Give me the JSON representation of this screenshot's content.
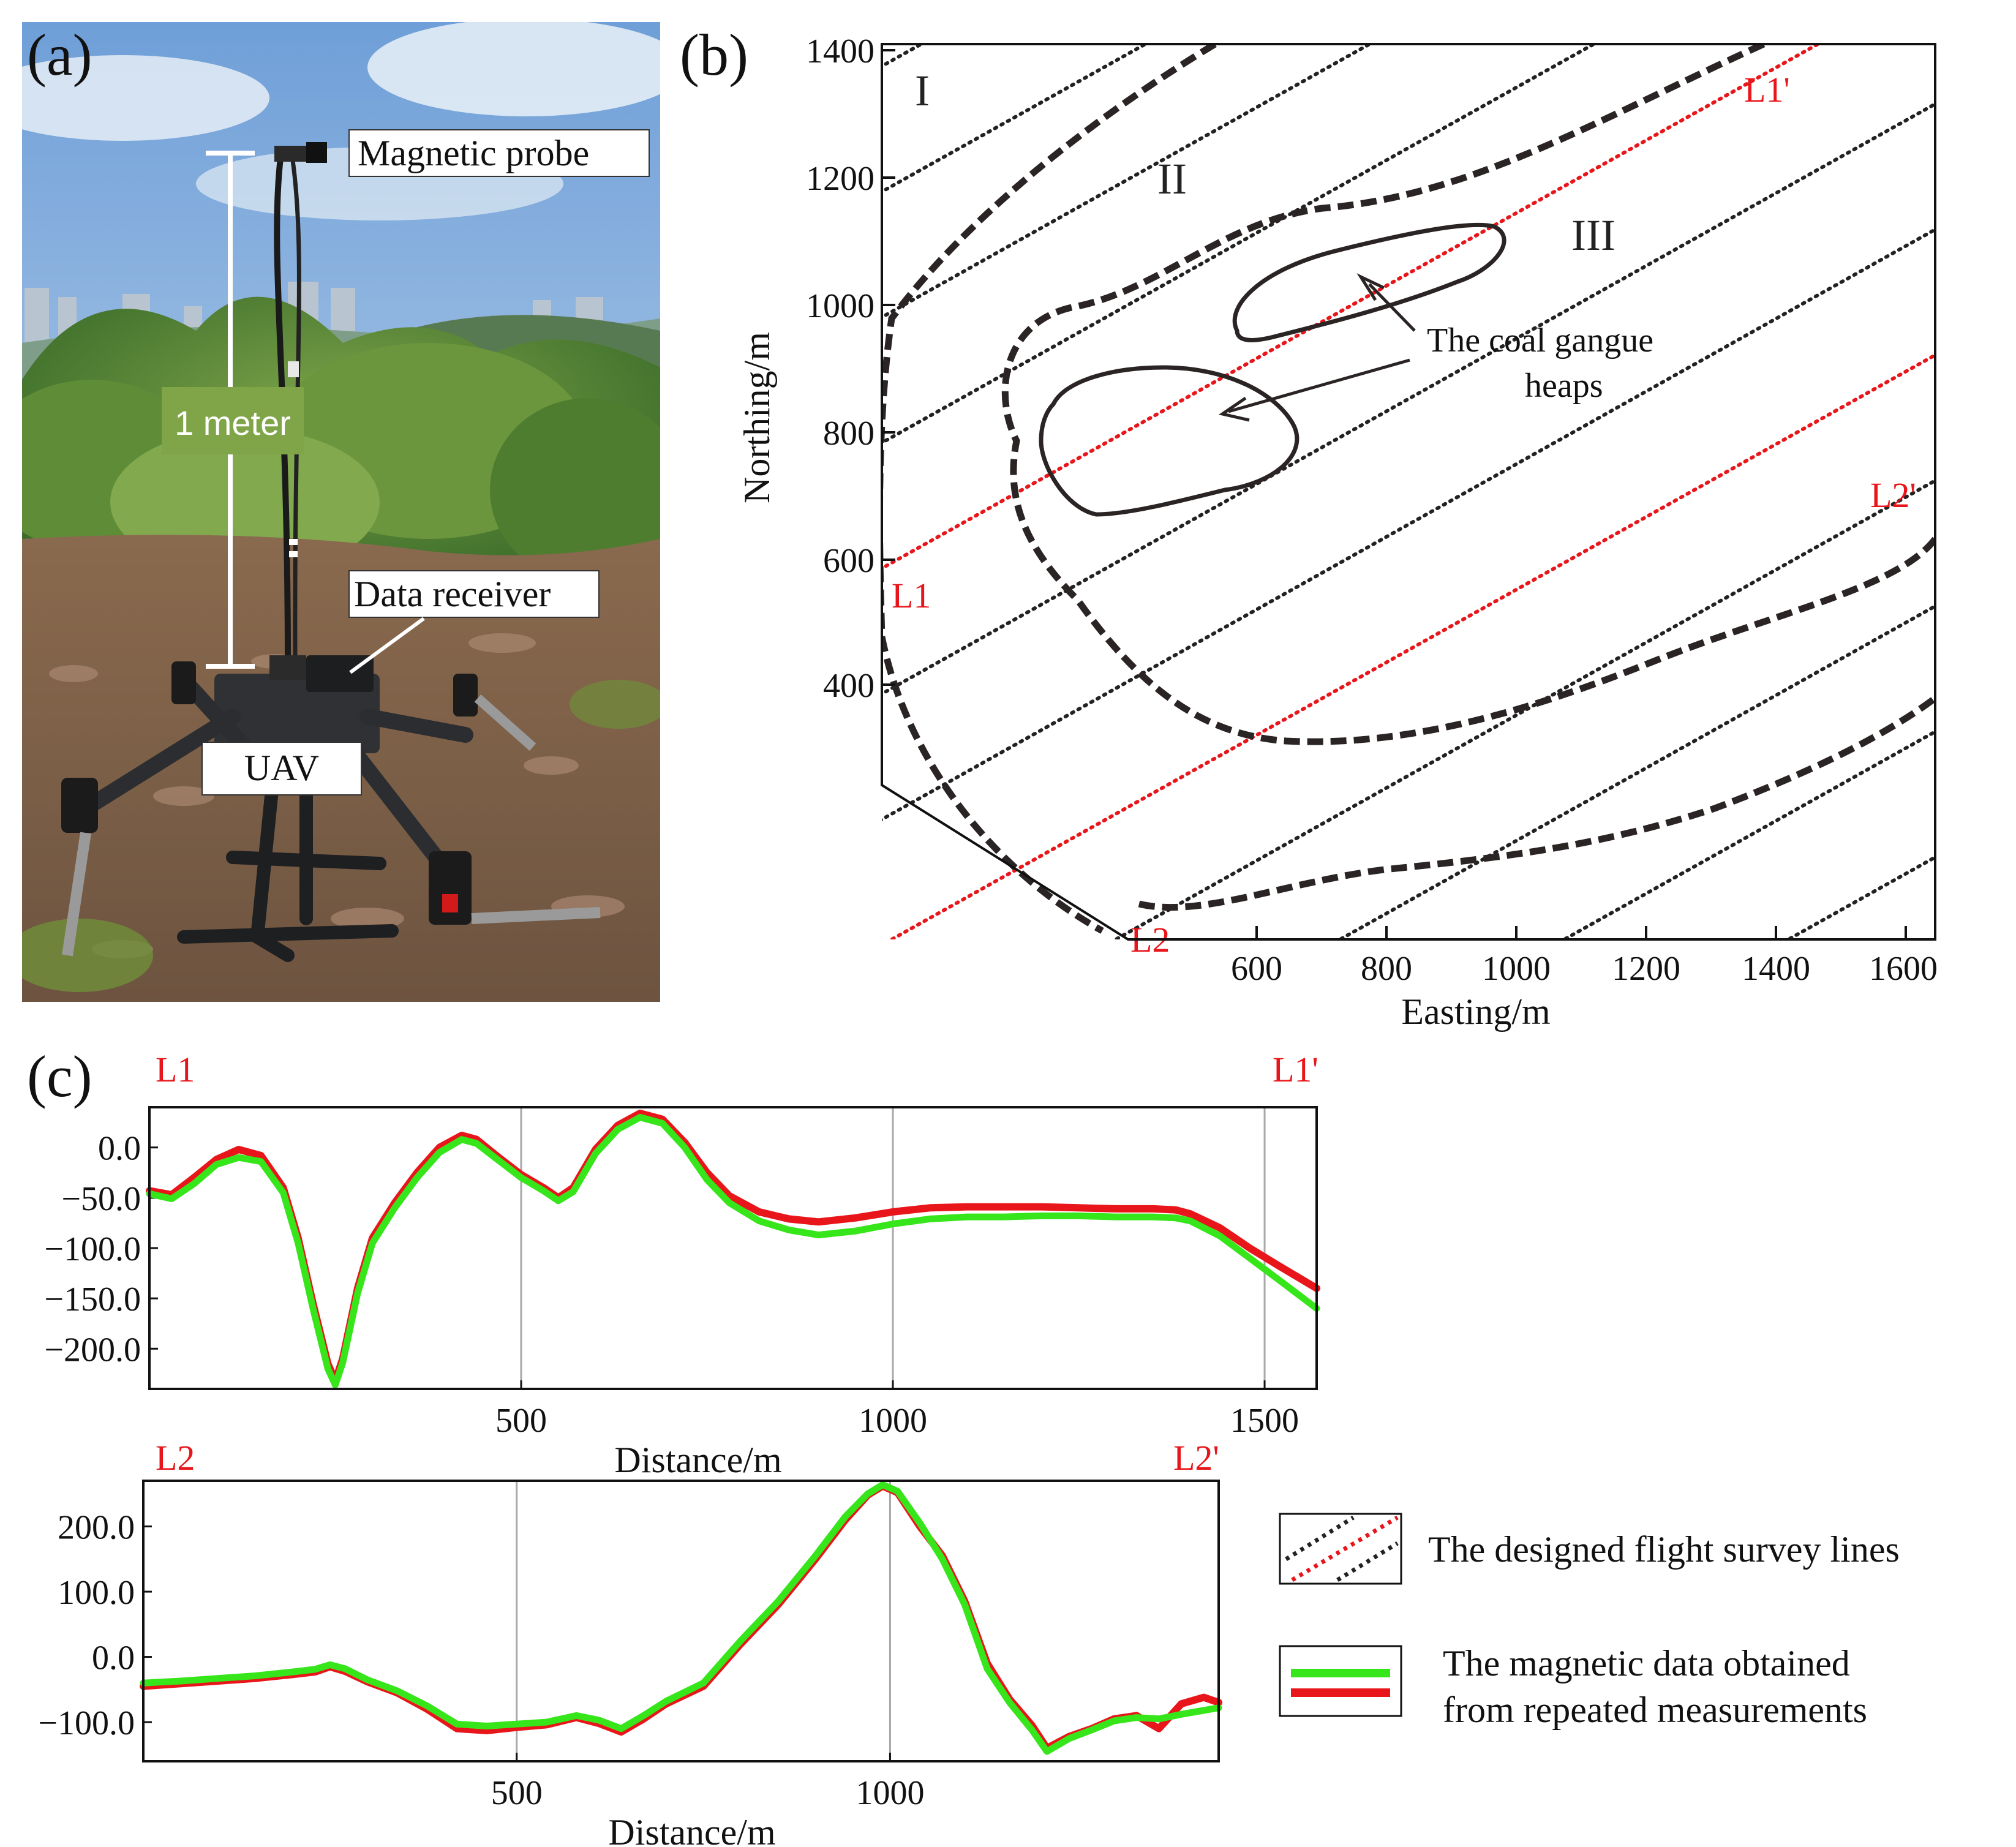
{
  "panel_a": {
    "letter": "(a)",
    "labels": {
      "magnetic_probe": "Magnetic probe",
      "one_meter": "1 meter",
      "data_receiver": "Data receiver",
      "uav": "UAV"
    }
  },
  "panel_b": {
    "letter": "(b)",
    "xlabel": "Easting/m",
    "ylabel": "Northing/m",
    "xticks": [
      "600",
      "800",
      "1000",
      "1200",
      "1400",
      "1600"
    ],
    "yticks": [
      "1400",
      "1200",
      "1000",
      "800",
      "600",
      "400"
    ],
    "zones": [
      "I",
      "II",
      "III"
    ],
    "annotation_line1": "The coal gangue",
    "annotation_line2": "heaps",
    "line_labels": {
      "L1": "L1",
      "L1p": "L1'",
      "L2": "L2",
      "L2p": "L2'"
    },
    "colors": {
      "survey_line": "#222222",
      "highlight_line": "#e8161b"
    }
  },
  "panel_c": {
    "letter": "(c)",
    "top_left_label": "L1",
    "top_right_label": "L1'",
    "bottom_left_label": "L2",
    "bottom_right_label": "L2'"
  },
  "legend": {
    "survey_lines": "The designed flight survey lines",
    "repeat_line1": "The magnetic data obtained",
    "repeat_line2": "from repeated measurements"
  },
  "colors": {
    "run1": "#e8161b",
    "run2": "#36e51a"
  },
  "chart_data": [
    {
      "type": "line",
      "title": "",
      "xlabel": "Distance/m",
      "ylabel": "",
      "xlim": [
        0,
        1570
      ],
      "ylim": [
        -240,
        40
      ],
      "xticks": [
        "500",
        "1000",
        "1500"
      ],
      "yticks": [
        "0.0",
        "−50.0",
        "−100.0",
        "−150.0",
        "−200.0"
      ],
      "grid": true,
      "x": [
        0,
        30,
        60,
        90,
        120,
        150,
        180,
        200,
        220,
        240,
        250,
        260,
        280,
        300,
        330,
        360,
        390,
        420,
        440,
        470,
        500,
        530,
        550,
        570,
        600,
        630,
        660,
        690,
        720,
        750,
        780,
        820,
        860,
        900,
        950,
        1000,
        1050,
        1100,
        1150,
        1200,
        1250,
        1300,
        1350,
        1380,
        1400,
        1440,
        1480,
        1520,
        1570
      ],
      "series": [
        {
          "values": [
            -43,
            -47,
            -30,
            -12,
            -2,
            -8,
            -40,
            -90,
            -155,
            -215,
            -232,
            -210,
            -140,
            -90,
            -55,
            -25,
            0,
            12,
            8,
            -10,
            -27,
            -40,
            -50,
            -40,
            -2,
            22,
            34,
            28,
            5,
            -25,
            -48,
            -64,
            -71,
            -74,
            -70,
            -64,
            -60,
            -59,
            -59,
            -59,
            -60,
            -61,
            -61,
            -62,
            -66,
            -80,
            -100,
            -118,
            -140
          ]
        },
        {
          "values": [
            -46,
            -51,
            -36,
            -17,
            -10,
            -14,
            -45,
            -95,
            -160,
            -220,
            -236,
            -214,
            -145,
            -95,
            -60,
            -30,
            -5,
            8,
            4,
            -13,
            -30,
            -43,
            -53,
            -44,
            -6,
            18,
            30,
            24,
            0,
            -32,
            -55,
            -73,
            -82,
            -87,
            -83,
            -76,
            -71,
            -69,
            -69,
            -68,
            -68,
            -69,
            -69,
            -70,
            -73,
            -88,
            -110,
            -132,
            -160
          ]
        }
      ]
    },
    {
      "type": "line",
      "title": "",
      "xlabel": "Distance/m",
      "ylabel": "",
      "xlim": [
        0,
        1440
      ],
      "ylim": [
        -160,
        270
      ],
      "xticks": [
        "500",
        "1000"
      ],
      "yticks": [
        "200.0",
        "100.0",
        "0.0",
        "−100.0"
      ],
      "grid": true,
      "x": [
        0,
        50,
        100,
        150,
        200,
        230,
        250,
        270,
        300,
        340,
        380,
        420,
        460,
        500,
        540,
        580,
        610,
        640,
        670,
        700,
        750,
        800,
        850,
        900,
        940,
        970,
        990,
        1010,
        1040,
        1070,
        1100,
        1130,
        1160,
        1190,
        1210,
        1240,
        1270,
        1300,
        1330,
        1360,
        1390,
        1420,
        1440
      ],
      "series": [
        {
          "values": [
            -45,
            -41,
            -37,
            -33,
            -27,
            -23,
            -15,
            -22,
            -38,
            -55,
            -80,
            -110,
            -113,
            -108,
            -104,
            -93,
            -102,
            -115,
            -95,
            -72,
            -45,
            20,
            80,
            150,
            210,
            248,
            262,
            252,
            200,
            155,
            85,
            -10,
            -65,
            -105,
            -140,
            -122,
            -110,
            -95,
            -90,
            -110,
            -72,
            -62,
            -70
          ]
        },
        {
          "values": [
            -40,
            -37,
            -33,
            -29,
            -23,
            -19,
            -12,
            -18,
            -35,
            -52,
            -75,
            -103,
            -106,
            -103,
            -100,
            -90,
            -97,
            -110,
            -90,
            -68,
            -40,
            25,
            85,
            155,
            215,
            250,
            264,
            254,
            205,
            150,
            80,
            -18,
            -70,
            -112,
            -145,
            -125,
            -112,
            -98,
            -93,
            -95,
            -88,
            -82,
            -78
          ]
        }
      ]
    }
  ]
}
